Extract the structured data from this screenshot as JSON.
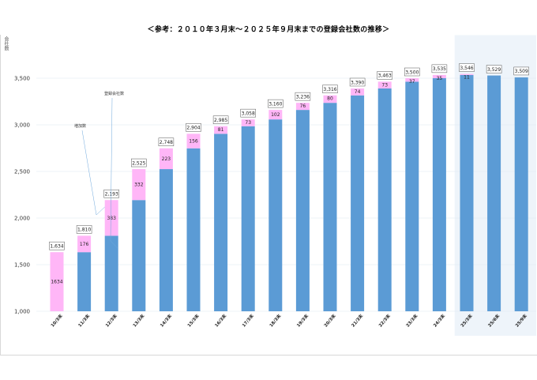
{
  "page": {
    "title": "＜参考：２０１０年３月末～２０２５年９月末までの登録会社数の推移＞",
    "y_axis_label": "会社数"
  },
  "chart_data": {
    "type": "bar",
    "stacked": true,
    "title": "＜参考：２０１０年３月末～２０２５年９月末までの登録会社数の推移＞",
    "xlabel": "",
    "ylabel": "会社数",
    "ylim": [
      1000,
      3750
    ],
    "yticks": [
      1000,
      1500,
      2000,
      2500,
      3000,
      3500
    ],
    "ytick_labels": [
      "1,000",
      "1,500",
      "2,000",
      "2,500",
      "3,000",
      "3,500"
    ],
    "grid": true,
    "categories": [
      "10/3末",
      "11/3末",
      "12/3末",
      "13/3末",
      "14/3末",
      "15/3末",
      "16/3末",
      "17/3末",
      "18/3末",
      "19/3末",
      "20/3末",
      "21/3末",
      "22/3末",
      "23/3末",
      "24/3末",
      "25/3末",
      "25/6末",
      "25/9末"
    ],
    "totals": [
      1634,
      1810,
      2193,
      2525,
      2748,
      2904,
      2985,
      3058,
      3160,
      3236,
      3316,
      3390,
      3463,
      3500,
      3535,
      3546,
      3529,
      3509
    ],
    "total_labels": [
      "1,634",
      "1,810",
      "2,193",
      "2,525",
      "2,748",
      "2,904",
      "2,985",
      "3,058",
      "3,160",
      "3,236",
      "3,316",
      "3,390",
      "3,463",
      "3,500",
      "3,535",
      "3,546",
      "3,529",
      "3,509"
    ],
    "increase": [
      1634,
      176,
      383,
      332,
      223,
      156,
      81,
      73,
      102,
      76,
      80,
      74,
      73,
      37,
      35,
      11,
      null,
      null
    ],
    "increase_labels": [
      "1634",
      "176",
      "383",
      "332",
      "223",
      "156",
      "81",
      "73",
      "102",
      "76",
      "80",
      "74",
      "73",
      "37",
      "35",
      "11",
      "",
      ""
    ],
    "highlight_from_index": 15,
    "annotations": [
      "増加数",
      "登録会社数"
    ],
    "colors": {
      "base": "#5b9bd5",
      "increase": "#ffb6f7",
      "highlight_bg": "#eef4fa",
      "grid": "#dde7f0"
    }
  }
}
